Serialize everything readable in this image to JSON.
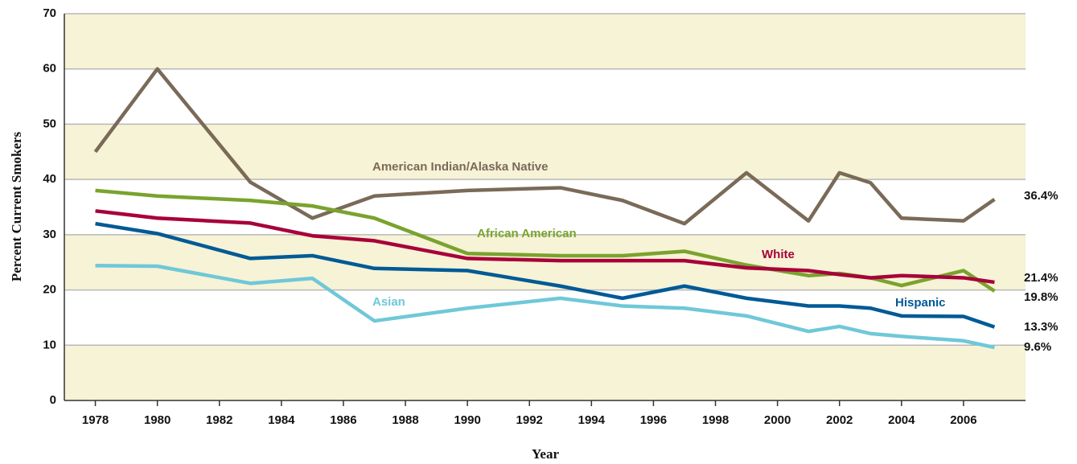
{
  "chart_data": {
    "type": "line",
    "x_label": "Year",
    "y_label": "Percent Current Smokers",
    "x": [
      1978,
      1980,
      1983,
      1985,
      1987,
      1990,
      1993,
      1995,
      1997,
      1999,
      2001,
      2002,
      2003,
      2004,
      2006,
      2007
    ],
    "series": [
      {
        "name": "American Indian/Alaska Native",
        "color": "#7a6a58",
        "values": [
          45.0,
          60.0,
          39.5,
          33.0,
          37.0,
          38.0,
          38.5,
          36.2,
          32.0,
          41.2,
          32.5,
          41.2,
          39.4,
          33.0,
          32.5,
          36.4
        ],
        "value_labels": [
          null,
          null,
          null,
          null,
          null,
          null,
          null,
          null,
          null,
          null,
          null,
          null,
          null,
          null,
          null,
          "36.4%"
        ]
      },
      {
        "name": "African American",
        "color": "#7aa32e",
        "values": [
          38.0,
          37.0,
          36.2,
          35.2,
          33.0,
          26.6,
          26.2,
          26.2,
          27.0,
          24.5,
          22.6,
          23.0,
          22.2,
          20.8,
          23.5,
          19.8
        ],
        "value_labels": [
          null,
          null,
          null,
          null,
          null,
          null,
          null,
          null,
          null,
          null,
          null,
          null,
          null,
          null,
          null,
          "19.8%"
        ]
      },
      {
        "name": "White",
        "color": "#a8003a",
        "values": [
          34.3,
          33.0,
          32.1,
          29.8,
          28.9,
          25.7,
          25.3,
          25.3,
          25.3,
          24.0,
          23.5,
          22.8,
          22.2,
          22.6,
          22.2,
          21.4
        ],
        "value_labels": [
          null,
          null,
          null,
          null,
          null,
          null,
          null,
          null,
          null,
          null,
          null,
          null,
          null,
          null,
          null,
          "21.4%"
        ]
      },
      {
        "name": "Hispanic",
        "color": "#005a96",
        "values": [
          32.0,
          30.2,
          25.7,
          26.2,
          23.9,
          23.5,
          20.7,
          18.5,
          20.7,
          18.5,
          17.1,
          17.1,
          16.7,
          15.3,
          15.2,
          13.3
        ],
        "value_labels": [
          null,
          null,
          null,
          null,
          null,
          null,
          null,
          null,
          null,
          null,
          null,
          null,
          null,
          null,
          null,
          "13.3%"
        ]
      },
      {
        "name": "Asian",
        "color": "#6fc8d8",
        "values": [
          24.4,
          24.3,
          21.2,
          22.1,
          14.4,
          16.7,
          18.5,
          17.1,
          16.7,
          15.3,
          12.5,
          13.4,
          12.1,
          11.6,
          10.8,
          9.6
        ],
        "value_labels": [
          null,
          null,
          null,
          null,
          null,
          null,
          null,
          null,
          null,
          null,
          null,
          null,
          null,
          null,
          null,
          "9.6%"
        ]
      }
    ],
    "xlim": [
      1977,
      2008
    ],
    "xticks": [
      1978,
      1980,
      1982,
      1984,
      1986,
      1988,
      1990,
      1992,
      1994,
      1996,
      1998,
      2000,
      2002,
      2004,
      2006
    ],
    "ylim": [
      0,
      70
    ],
    "yticks": [
      0,
      10,
      20,
      30,
      40,
      50,
      60,
      70
    ],
    "grid": true,
    "banded": true
  }
}
